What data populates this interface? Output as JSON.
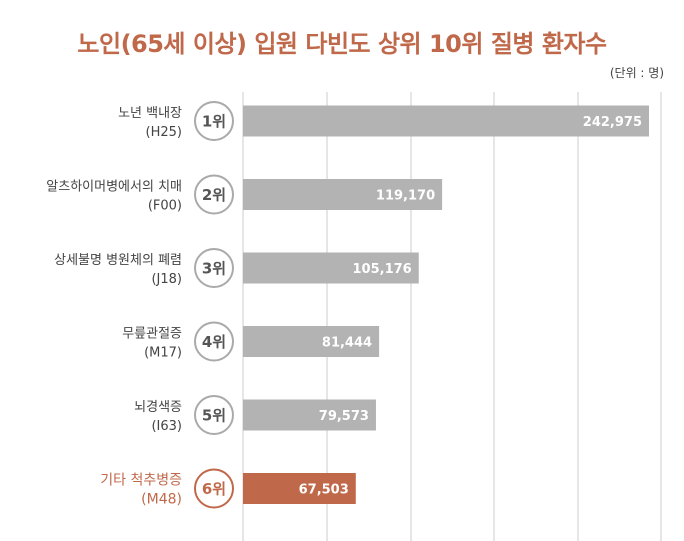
{
  "title": "노인(65세 이상) 입원 다빈도 상위 10위 질병 환자수",
  "unit": "(단위 : 명)",
  "colors": {
    "bar": "#b3b3b3",
    "highlight": "#c0694a",
    "grid": "#cccccc",
    "title": "#c0694a"
  },
  "chart_data": {
    "type": "bar",
    "orientation": "horizontal",
    "title": "노인(65세 이상) 입원 다빈도 상위 10위 질병 환자수",
    "unit": "(단위 : 명)",
    "grid": true,
    "items": [
      {
        "name": "노년 백내장",
        "code": "(H25)",
        "rank": "1위",
        "value": 242975,
        "value_label": "242,975",
        "highlight": false
      },
      {
        "name": "알츠하이머병에서의 치매",
        "code": "(F00)",
        "rank": "2위",
        "value": 119170,
        "value_label": "119,170",
        "highlight": false
      },
      {
        "name": "상세불명 병원체의 폐렴",
        "code": "(J18)",
        "rank": "3위",
        "value": 105176,
        "value_label": "105,176",
        "highlight": false
      },
      {
        "name": "무릎관절증",
        "code": "(M17)",
        "rank": "4위",
        "value": 81444,
        "value_label": "81,444",
        "highlight": false
      },
      {
        "name": "뇌경색증",
        "code": "(I63)",
        "rank": "5위",
        "value": 79573,
        "value_label": "79,573",
        "highlight": false
      },
      {
        "name": "기타 척추병증",
        "code": "(M48)",
        "rank": "6위",
        "value": 67503,
        "value_label": "67,503",
        "highlight": true
      }
    ]
  }
}
